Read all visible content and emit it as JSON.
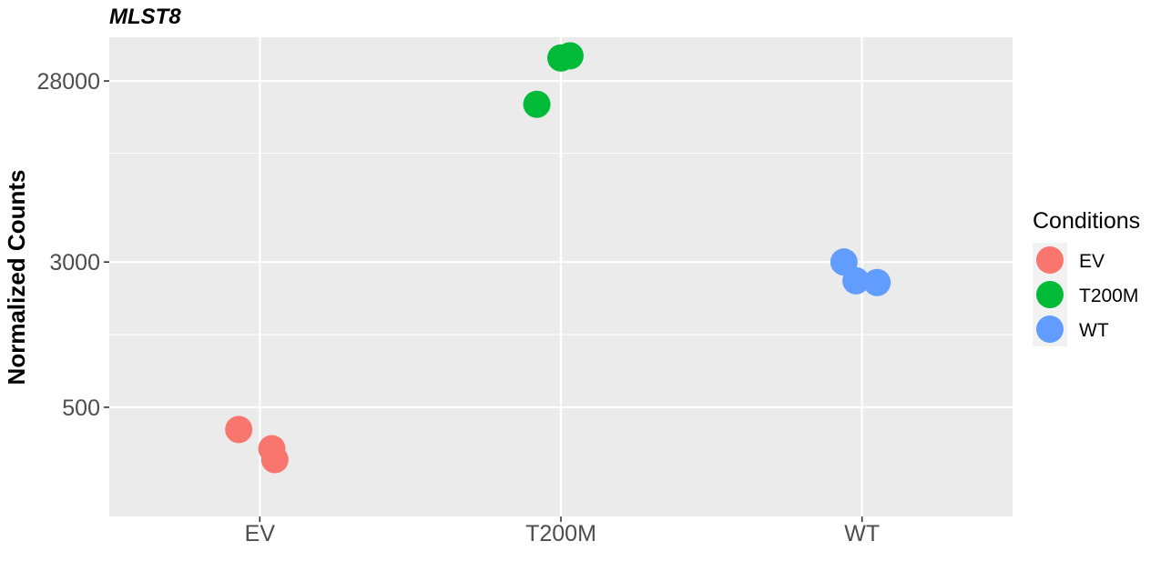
{
  "chart_data": {
    "type": "scatter",
    "title": "MLST8",
    "ylabel": "Normalized Counts",
    "xlabel": "",
    "y_scale": "log10",
    "ylim": [
      130,
      48000
    ],
    "categories": [
      "EV",
      "T200M",
      "WT"
    ],
    "y_ticks": [
      {
        "value": 500,
        "label": "500"
      },
      {
        "value": 3000,
        "label": "3000"
      },
      {
        "value": 28000,
        "label": "28000"
      }
    ],
    "y_minor_breaks": [
      1225,
      11500
    ],
    "grid": true,
    "legend": {
      "title": "Conditions",
      "position": "right",
      "entries": [
        {
          "name": "EV",
          "color": "#F8766D"
        },
        {
          "name": "T200M",
          "color": "#00BA38"
        },
        {
          "name": "WT",
          "color": "#619CFF"
        }
      ]
    },
    "series": [
      {
        "name": "EV",
        "color": "#F8766D",
        "points": [
          {
            "x": "EV",
            "jitter": -0.07,
            "y": 380
          },
          {
            "x": "EV",
            "jitter": 0.04,
            "y": 300
          },
          {
            "x": "EV",
            "jitter": 0.05,
            "y": 262
          }
        ]
      },
      {
        "name": "T200M",
        "color": "#00BA38",
        "points": [
          {
            "x": "T200M",
            "jitter": -0.08,
            "y": 21000
          },
          {
            "x": "T200M",
            "jitter": 0.0,
            "y": 37200
          },
          {
            "x": "T200M",
            "jitter": 0.03,
            "y": 38200
          }
        ]
      },
      {
        "name": "WT",
        "color": "#619CFF",
        "points": [
          {
            "x": "WT",
            "jitter": -0.06,
            "y": 3000
          },
          {
            "x": "WT",
            "jitter": -0.02,
            "y": 2380
          },
          {
            "x": "WT",
            "jitter": 0.05,
            "y": 2330
          }
        ]
      }
    ]
  }
}
